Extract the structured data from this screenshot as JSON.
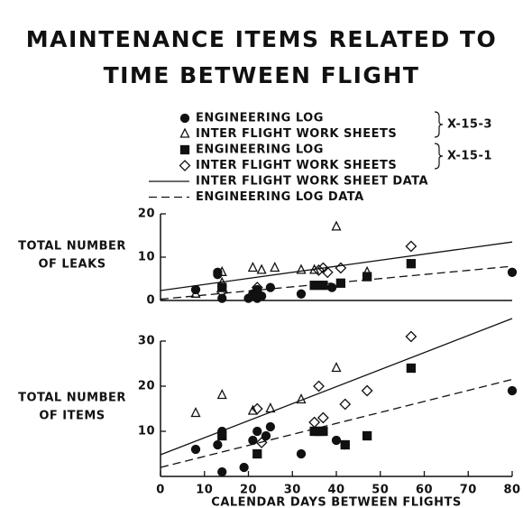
{
  "title": [
    "MAINTENANCE ITEMS RELATED TO",
    "TIME BETWEEN FLIGHT"
  ],
  "legend_groups": [
    "X-15-3",
    "X-15-1"
  ],
  "chart_data": [
    {
      "type": "scatter",
      "ylabel": [
        "TOTAL NUMBER",
        "OF LEAKS"
      ],
      "xlim": [
        0,
        80
      ],
      "ylim": [
        0,
        20
      ],
      "yticks": [
        0,
        10,
        20
      ],
      "series": [
        {
          "name": "ENGINEERING LOG",
          "marker": "circle",
          "color": "#111",
          "x": [
            8,
            13,
            13,
            14,
            20,
            21,
            22,
            22,
            23,
            25,
            32,
            39,
            80
          ],
          "values": [
            2.5,
            6.5,
            6,
            0.5,
            0.5,
            1.5,
            0.5,
            2.5,
            1,
            3,
            1.5,
            3,
            6.5
          ]
        },
        {
          "name": "INTER FLIGHT WORK SHEETS",
          "marker": "triangle",
          "color": "#111",
          "x": [
            8,
            14,
            14,
            21,
            23,
            26,
            32,
            35,
            40,
            47
          ],
          "values": [
            1.5,
            6.5,
            4,
            7.5,
            7,
            7.5,
            7,
            7,
            17,
            6.5
          ]
        },
        {
          "name": "ENGINEERING LOG",
          "marker": "square",
          "color": "#111",
          "x": [
            14,
            22,
            35,
            37,
            41,
            47,
            57
          ],
          "values": [
            3,
            1.5,
            3.5,
            3.5,
            4,
            5.5,
            8.5
          ]
        },
        {
          "name": "INTER FLIGHT WORK SHEETS",
          "marker": "diamond",
          "color": "#111",
          "x": [
            14,
            22,
            36,
            37,
            38,
            41,
            57
          ],
          "values": [
            2,
            3,
            7,
            7.5,
            6.5,
            7.5,
            12.5
          ]
        },
        {
          "name": "INTER FLIGHT WORK SHEET DATA",
          "line": "solid",
          "color": "#111",
          "x": [
            0,
            80
          ],
          "values": [
            2.3,
            13.5
          ]
        },
        {
          "name": "ENGINEERING LOG DATA",
          "line": "dashed",
          "color": "#111",
          "x": [
            0,
            80
          ],
          "values": [
            0.3,
            7.9
          ]
        }
      ]
    },
    {
      "type": "scatter",
      "ylabel": [
        "TOTAL NUMBER",
        "OF ITEMS"
      ],
      "xlabel": "CALENDAR DAYS BETWEEN FLIGHTS",
      "xlim": [
        0,
        80
      ],
      "xticks": [
        0,
        10,
        20,
        30,
        40,
        50,
        60,
        70,
        80
      ],
      "ylim": [
        0,
        30
      ],
      "yticks": [
        10,
        20,
        30
      ],
      "series": [
        {
          "marker": "circle",
          "color": "#111",
          "x": [
            8,
            13,
            14,
            14,
            19,
            21,
            22,
            24,
            25,
            32,
            40,
            42,
            80
          ],
          "values": [
            6,
            7,
            1,
            10,
            2,
            8,
            10,
            9,
            11,
            5,
            8,
            7,
            19
          ]
        },
        {
          "marker": "triangle",
          "color": "#111",
          "x": [
            8,
            14,
            21,
            25,
            32,
            40
          ],
          "values": [
            14,
            18,
            14.5,
            15,
            17,
            24
          ]
        },
        {
          "marker": "square",
          "color": "#111",
          "x": [
            14,
            22,
            35,
            36,
            37,
            42,
            47,
            57
          ],
          "values": [
            9,
            5,
            10,
            10,
            10,
            7,
            9,
            24
          ]
        },
        {
          "marker": "diamond",
          "color": "#111",
          "x": [
            22,
            23,
            35,
            36,
            37,
            42,
            47,
            57
          ],
          "values": [
            15,
            7.5,
            12,
            20,
            13,
            16,
            19,
            31
          ]
        },
        {
          "line": "solid",
          "color": "#111",
          "x": [
            0,
            80
          ],
          "values": [
            4.8,
            35
          ]
        },
        {
          "line": "dashed",
          "color": "#111",
          "x": [
            0,
            80
          ],
          "values": [
            2,
            21.5
          ]
        }
      ]
    }
  ]
}
